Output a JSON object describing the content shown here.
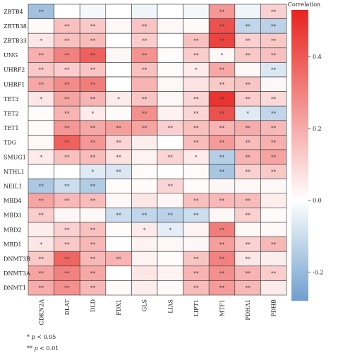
{
  "chart_data": {
    "type": "heatmap",
    "legend_title": "Correlation",
    "colorbar": {
      "min": -0.28,
      "max": 0.53,
      "ticks": [
        0.4,
        0.2,
        0.0,
        -0.2
      ],
      "tick_labels": [
        "0.4",
        "0.2",
        "0.0",
        "-0.2"
      ]
    },
    "colors": {
      "negative": "#6F9FCD",
      "zero": "#FFFFFF",
      "positive": "#E8231E"
    },
    "rows": [
      "ZBTB4",
      "ZBTB38",
      "ZBTB33",
      "UNG",
      "UHRF2",
      "UHRF1",
      "TET3",
      "TET2",
      "TET1",
      "TDG",
      "SMUG1",
      "NTHL1",
      "NEIL1",
      "MBD4",
      "MBD3",
      "MBD2",
      "MBD1",
      "DNMT3B",
      "DNMT3A",
      "DNMT1"
    ],
    "columns": [
      "CDKN2A",
      "DLAT",
      "DLD",
      "FDX1",
      "GLS",
      "LIAS",
      "LIPT1",
      "MTF1",
      "PDHA1",
      "PDHB"
    ],
    "values": [
      [
        -0.18,
        0.0,
        -0.02,
        0.0,
        -0.03,
        0.0,
        -0.02,
        0.25,
        -0.03,
        0.11
      ],
      [
        0.01,
        0.15,
        0.13,
        0.02,
        0.14,
        0.02,
        0.01,
        0.42,
        -0.12,
        -0.13
      ],
      [
        0.06,
        0.15,
        0.16,
        0.0,
        0.12,
        0.0,
        0.15,
        0.45,
        0.11,
        0.13
      ],
      [
        0.19,
        0.3,
        0.38,
        0.02,
        0.26,
        0.01,
        0.12,
        0.02,
        0.13,
        0.15
      ],
      [
        0.13,
        0.12,
        0.14,
        0.0,
        0.15,
        0.01,
        0.05,
        0.21,
        0.02,
        -0.07
      ],
      [
        0.21,
        0.28,
        0.31,
        0.0,
        0.18,
        0.02,
        0.07,
        0.13,
        0.14,
        0.02
      ],
      [
        0.06,
        0.22,
        0.18,
        0.05,
        0.14,
        0.02,
        0.1,
        0.49,
        0.12,
        0.09
      ],
      [
        0.01,
        0.18,
        0.05,
        0.01,
        0.27,
        0.03,
        0.1,
        0.42,
        -0.06,
        -0.12
      ],
      [
        0.01,
        0.25,
        0.21,
        0.23,
        0.22,
        0.11,
        0.15,
        0.18,
        0.2,
        0.17
      ],
      [
        0.02,
        0.38,
        0.25,
        0.1,
        0.04,
        0.0,
        0.16,
        0.24,
        0.16,
        0.19
      ],
      [
        0.05,
        0.15,
        0.16,
        0.07,
        0.03,
        0.1,
        0.05,
        -0.14,
        0.18,
        0.22
      ],
      [
        0.0,
        0.0,
        -0.06,
        -0.07,
        0.01,
        0.0,
        0.01,
        -0.17,
        0.11,
        0.13
      ],
      [
        -0.16,
        -0.1,
        -0.15,
        0.01,
        0.01,
        0.1,
        0.01,
        0.02,
        0.02,
        0.02
      ],
      [
        0.22,
        0.17,
        0.16,
        0.02,
        0.06,
        0.02,
        0.15,
        0.17,
        0.16,
        0.04
      ],
      [
        0.12,
        0.02,
        0.02,
        -0.1,
        -0.12,
        -0.13,
        -0.1,
        0.02,
        0.11,
        0.01
      ],
      [
        0.04,
        0.11,
        0.15,
        0.01,
        0.05,
        -0.05,
        0.03,
        0.31,
        0.02,
        0.02
      ],
      [
        0.06,
        0.13,
        0.17,
        0.0,
        0.03,
        0.02,
        0.02,
        0.23,
        0.11,
        0.17
      ],
      [
        0.13,
        0.37,
        0.17,
        0.18,
        0.03,
        0.01,
        0.14,
        0.3,
        0.06,
        0.04
      ],
      [
        0.22,
        0.3,
        0.21,
        0.0,
        0.06,
        0.03,
        0.18,
        0.27,
        0.18,
        0.12
      ],
      [
        0.2,
        0.27,
        0.17,
        0.01,
        0.04,
        0.01,
        0.16,
        0.24,
        0.17,
        0.05
      ]
    ],
    "significance": [
      [
        "**",
        "",
        "",
        "",
        "",
        "",
        "",
        "**",
        "",
        "**"
      ],
      [
        "",
        "**",
        "**",
        "",
        "**",
        "",
        "",
        "**",
        "**",
        "**"
      ],
      [
        "*",
        "**",
        "**",
        "",
        "**",
        "",
        "**",
        "**",
        "**",
        "**"
      ],
      [
        "**",
        "**",
        "**",
        "",
        "**",
        "",
        "**",
        "*",
        "**",
        "**"
      ],
      [
        "**",
        "**",
        "**",
        "",
        "**",
        "",
        "*",
        "**",
        "",
        "**"
      ],
      [
        "**",
        "**",
        "**",
        "",
        "",
        "",
        "",
        "**",
        "**",
        ""
      ],
      [
        "*",
        "**",
        "**",
        "*",
        "**",
        "",
        "**",
        "**",
        "**",
        "**"
      ],
      [
        "",
        "**",
        "*",
        "",
        "**",
        "",
        "**",
        "**",
        "*",
        "**"
      ],
      [
        "",
        "**",
        "**",
        "**",
        "**",
        "**",
        "**",
        "**",
        "**",
        "**"
      ],
      [
        "",
        "**",
        "**",
        "**",
        "",
        "",
        "**",
        "**",
        "**",
        "**"
      ],
      [
        "*",
        "**",
        "**",
        "**",
        "",
        "**",
        "*",
        "**",
        "**",
        "**"
      ],
      [
        "",
        "",
        "*",
        "**",
        "",
        "",
        "",
        "**",
        "**",
        "**"
      ],
      [
        "**",
        "**",
        "**",
        "",
        "",
        "**",
        "",
        "",
        "",
        ""
      ],
      [
        "**",
        "**",
        "**",
        "",
        "",
        "",
        "**",
        "**",
        "**",
        ""
      ],
      [
        "**",
        "",
        "",
        "**",
        "**",
        "**",
        "**",
        "",
        "**",
        ""
      ],
      [
        "",
        "**",
        "**",
        "",
        "*",
        "*",
        "",
        "**",
        "",
        ""
      ],
      [
        "*",
        "**",
        "**",
        "",
        "",
        "",
        "",
        "**",
        "**",
        "**"
      ],
      [
        "**",
        "**",
        "**",
        "**",
        "",
        "",
        "**",
        "**",
        "**",
        ""
      ],
      [
        "**",
        "**",
        "**",
        "",
        "",
        "",
        "**",
        "**",
        "**",
        "**"
      ],
      [
        "**",
        "**",
        "**",
        "",
        "",
        "",
        "**",
        "**",
        "**",
        ""
      ]
    ]
  },
  "footnotes": {
    "one_star": "* ",
    "one_star_p": "p",
    "one_star_rest": " < 0.05",
    "two_star": "** ",
    "two_star_p": "p",
    "two_star_rest": " < 0.01"
  }
}
